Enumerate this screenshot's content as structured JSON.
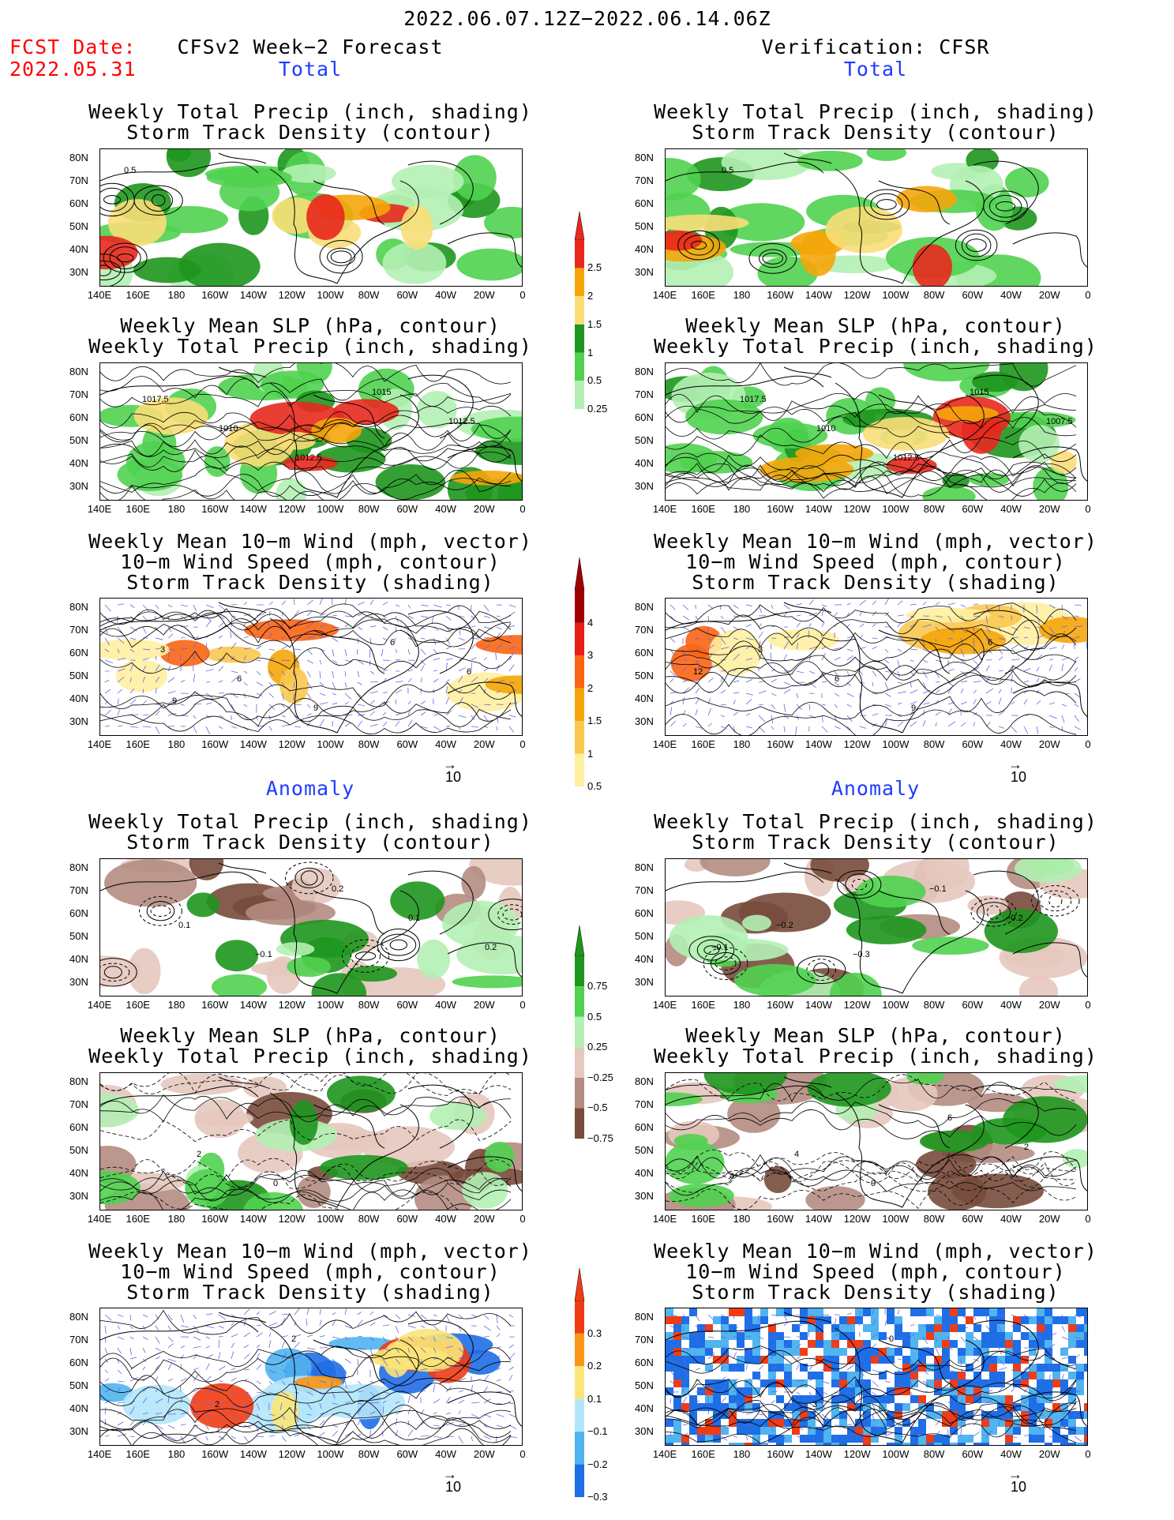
{
  "header": {
    "period": "2022.06.07.12Z−2022.06.14.06Z",
    "fcst_date_label": "FCST Date:",
    "fcst_date_value": "2022.05.31",
    "left_title": "CFSv2 Week−2 Forecast",
    "right_title": "Verification: CFSR"
  },
  "sections": {
    "total": "Total",
    "anomaly": "Anomaly"
  },
  "panel_titles": {
    "precip_storm": [
      "Weekly Total Precip (inch, shading)",
      "Storm Track Density (contour)"
    ],
    "slp_precip": [
      "Weekly Mean SLP (hPa, contour)",
      "Weekly Total Precip (inch, shading)"
    ],
    "wind_storm": [
      "Weekly Mean 10−m Wind (mph, vector)",
      "10−m Wind Speed (mph, contour)",
      "Storm Track Density (shading)"
    ]
  },
  "axes": {
    "lat_labels": [
      "80N",
      "70N",
      "60N",
      "50N",
      "40N",
      "30N"
    ],
    "lon_labels": [
      "140E",
      "160E",
      "180",
      "160W",
      "140W",
      "120W",
      "100W",
      "80W",
      "60W",
      "40W",
      "20W",
      "0"
    ]
  },
  "vector_ref": "10",
  "colorbars": {
    "precip_total": {
      "labels": [
        "2.5",
        "2",
        "1.5",
        "1",
        "0.5",
        "0.25"
      ],
      "colors": [
        "#e8281e",
        "#f5a50a",
        "#fade78",
        "#1e961e",
        "#50d250",
        "#b4f0b4"
      ]
    },
    "storm_total": {
      "labels": [
        "4",
        "3",
        "2",
        "1.5",
        "1",
        "0.5"
      ],
      "colors": [
        "#a00000",
        "#e61e14",
        "#fa6414",
        "#f5a50a",
        "#fac850",
        "#fff0a0"
      ]
    },
    "precip_anom": {
      "labels": [
        "0.75",
        "0.5",
        "0.25",
        "−0.25",
        "−0.5",
        "−0.75"
      ],
      "colors": [
        "#1e961e",
        "#50d250",
        "#b4f0b4",
        "#e6c8be",
        "#b48c82",
        "#784b3c"
      ]
    },
    "storm_anom": {
      "labels": [
        "0.3",
        "0.2",
        "0.1",
        "−0.1",
        "−0.2",
        "−0.3"
      ],
      "colors": [
        "#f03c14",
        "#fa9614",
        "#fae678",
        "#b4e6fa",
        "#50b4f0",
        "#1e6ee6"
      ]
    }
  },
  "contour_labels": {
    "p1L": [
      "0.5"
    ],
    "p1R": [
      "0.5"
    ],
    "p2L": [
      "1017.5",
      "1010",
      "1012.5",
      "1015",
      "1012.5"
    ],
    "p2R": [
      "1017.5",
      "1010",
      "1012.5",
      "1015",
      "1007.5"
    ],
    "p3L": [
      "3",
      "6",
      "9",
      "6",
      "6",
      "9"
    ],
    "p3R": [
      "3",
      "6",
      "9",
      "6",
      "12"
    ],
    "p4L": [
      "0.1",
      "−0.1",
      "0.2",
      "0.1",
      "0.2"
    ],
    "p4R": [
      "−0.2",
      "−0.3",
      "−0.1",
      "−0.2",
      "−0.1"
    ],
    "p5L": [
      "2",
      "0"
    ],
    "p5R": [
      "4",
      "0",
      "6",
      "2",
      "4"
    ],
    "p6L": [
      "2",
      "2"
    ],
    "p6R": [
      "3",
      "0"
    ]
  }
}
